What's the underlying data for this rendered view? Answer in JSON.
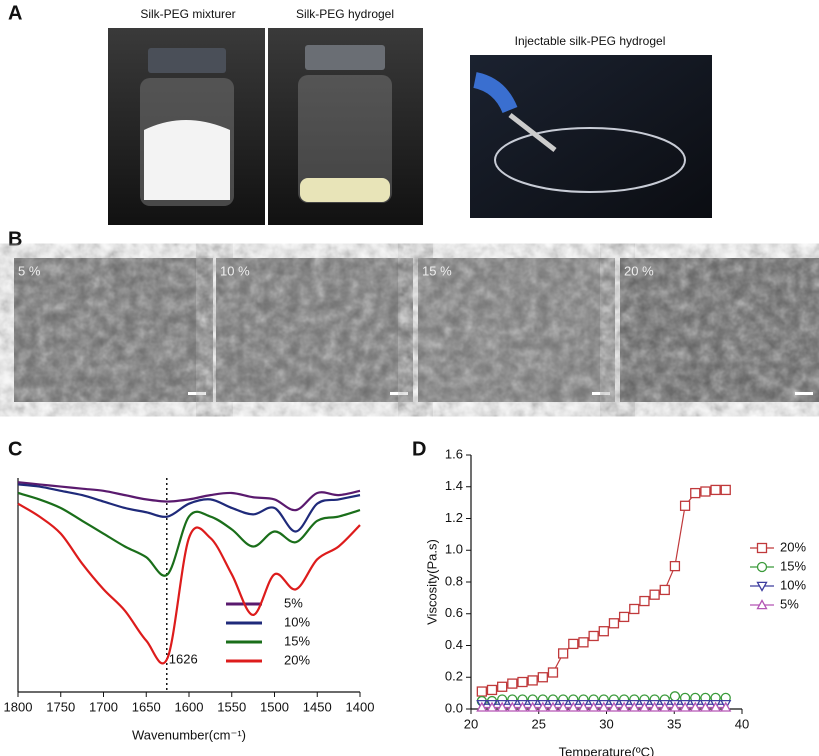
{
  "panel_labels": [
    "A",
    "B",
    "C",
    "D"
  ],
  "photos": [
    "Silk-PEG mixturer",
    "Silk-PEG hydrogel",
    "Injectable silk-PEG hydrogel"
  ],
  "sem_labels": [
    "5 %",
    "10 %",
    "15 %",
    "20 %"
  ],
  "chart_data": [
    {
      "type": "line",
      "xlabel": "Wavenumber(cm⁻¹)",
      "x": [
        1800,
        1775,
        1750,
        1725,
        1700,
        1675,
        1650,
        1625,
        1600,
        1575,
        1550,
        1525,
        1500,
        1475,
        1450,
        1425,
        1400
      ],
      "xlim": [
        1800,
        1400
      ],
      "xticks": [
        1800,
        1750,
        1700,
        1650,
        1600,
        1550,
        1500,
        1450,
        1400
      ],
      "ylim": [
        0,
        100
      ],
      "annotations": [
        {
          "x": 1626,
          "text": "1626"
        }
      ],
      "legend": "lower-right",
      "series": [
        {
          "name": "5%",
          "color": "#5a1a6e",
          "values": [
            98,
            97,
            96,
            95,
            94,
            92,
            90,
            89,
            90,
            92,
            93,
            91,
            90,
            85,
            93,
            92,
            94
          ]
        },
        {
          "name": "10%",
          "color": "#1f2a7a",
          "values": [
            97,
            96,
            94,
            92,
            89,
            86,
            84,
            82,
            88,
            90,
            86,
            83,
            86,
            75,
            88,
            90,
            92
          ]
        },
        {
          "name": "15%",
          "color": "#1a6e1a",
          "values": [
            93,
            90,
            86,
            80,
            74,
            68,
            63,
            55,
            82,
            82,
            76,
            68,
            75,
            70,
            80,
            82,
            85
          ]
        },
        {
          "name": "20%",
          "color": "#dd1c1c",
          "values": [
            88,
            82,
            74,
            60,
            48,
            38,
            24,
            16,
            72,
            72,
            55,
            36,
            55,
            48,
            62,
            68,
            78
          ]
        }
      ]
    },
    {
      "type": "line",
      "xlabel": "Temperature(ºC)",
      "ylabel": "Viscosity(Pa.s)",
      "x": [
        20.8,
        21.55,
        22.3,
        23.05,
        23.8,
        24.55,
        25.3,
        26.05,
        26.8,
        27.55,
        28.3,
        29.05,
        29.8,
        30.55,
        31.3,
        32.05,
        32.8,
        33.55,
        34.3,
        35.05,
        35.8,
        36.55,
        37.3,
        38.05,
        38.8
      ],
      "xlim": [
        20,
        40
      ],
      "xticks": [
        20,
        25,
        30,
        35,
        40
      ],
      "ylim": [
        0,
        1.6
      ],
      "yticks": [
        {
          "value": 0,
          "label": "0.0"
        },
        0.2,
        0.4,
        0.6,
        0.8,
        {
          "value": 1,
          "label": "1.0"
        },
        1.2,
        1.4,
        1.6
      ],
      "legend": "right",
      "series": [
        {
          "name": "20%",
          "color": "#c0393b",
          "marker": "square",
          "values": [
            0.11,
            0.12,
            0.14,
            0.16,
            0.17,
            0.18,
            0.2,
            0.23,
            0.35,
            0.41,
            0.42,
            0.46,
            0.49,
            0.54,
            0.58,
            0.63,
            0.68,
            0.72,
            0.75,
            0.9,
            1.28,
            1.36,
            1.37,
            1.38,
            1.38
          ]
        },
        {
          "name": "15%",
          "color": "#3a9a3a",
          "marker": "circle",
          "values": [
            0.05,
            0.05,
            0.06,
            0.06,
            0.06,
            0.06,
            0.06,
            0.06,
            0.06,
            0.06,
            0.06,
            0.06,
            0.06,
            0.06,
            0.06,
            0.06,
            0.06,
            0.06,
            0.06,
            0.08,
            0.07,
            0.07,
            0.07,
            0.07,
            0.07
          ]
        },
        {
          "name": "10%",
          "color": "#3d3d9e",
          "marker": "triangle-down",
          "values": [
            0.03,
            0.03,
            0.03,
            0.03,
            0.03,
            0.03,
            0.03,
            0.03,
            0.03,
            0.03,
            0.03,
            0.03,
            0.03,
            0.03,
            0.03,
            0.03,
            0.03,
            0.03,
            0.03,
            0.03,
            0.03,
            0.03,
            0.03,
            0.03,
            0.03
          ]
        },
        {
          "name": "5%",
          "color": "#b455b4",
          "marker": "triangle-up",
          "values": [
            0.01,
            0.01,
            0.01,
            0.01,
            0.01,
            0.01,
            0.01,
            0.01,
            0.01,
            0.01,
            0.01,
            0.01,
            0.01,
            0.01,
            0.01,
            0.01,
            0.01,
            0.01,
            0.01,
            0.01,
            0.01,
            0.01,
            0.01,
            0.01,
            0.01
          ]
        }
      ]
    }
  ]
}
